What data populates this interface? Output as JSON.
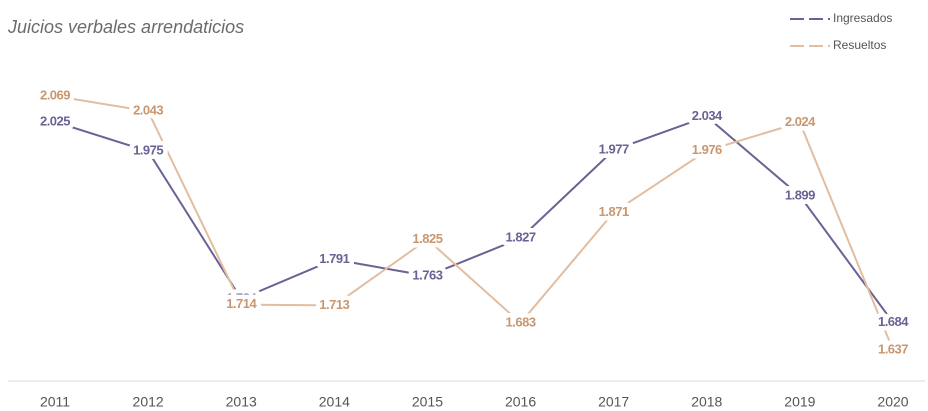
{
  "chart_data": {
    "type": "line",
    "title": "Juicios verbales arrendaticios",
    "categories": [
      "2011",
      "2012",
      "2013",
      "2014",
      "2015",
      "2016",
      "2017",
      "2018",
      "2019",
      "2020"
    ],
    "series": [
      {
        "name": "Ingresados",
        "color": "#6a6294",
        "values": [
          2025,
          1975,
          1724,
          1791,
          1763,
          1827,
          1977,
          2034,
          1899,
          1684
        ],
        "value_labels": [
          "2.025",
          "1.975",
          "1.724",
          "1.791",
          "1.763",
          "1.827",
          "1.977",
          "2.034",
          "1.899",
          "1.684"
        ]
      },
      {
        "name": "Resueltos",
        "color": "#e3bd9f",
        "values": [
          2069,
          2043,
          1714,
          1713,
          1825,
          1683,
          1871,
          1976,
          2024,
          1637
        ],
        "value_labels": [
          "2.069",
          "2.043",
          "1.714",
          "1.713",
          "1.825",
          "1.683",
          "1.871",
          "1.976",
          "2.024",
          "1.637"
        ]
      }
    ],
    "legend": "top-right"
  }
}
